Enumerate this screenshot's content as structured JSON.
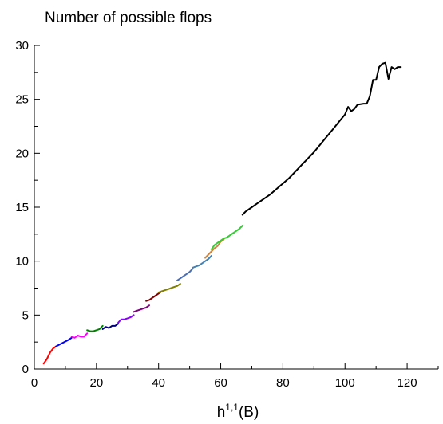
{
  "chart_data": {
    "type": "line",
    "title": "Number of possible flops",
    "xlabel_main": "h",
    "xlabel_sup": "1,1",
    "xlabel_suffix": "(B)",
    "ylabel": "",
    "xlim": [
      0,
      130
    ],
    "ylim": [
      0,
      30
    ],
    "xticks": [
      0,
      20,
      40,
      60,
      80,
      100,
      120
    ],
    "yticks": [
      0,
      5,
      10,
      15,
      20,
      25,
      30
    ],
    "grid": false,
    "series": [
      {
        "color": "#ff0000",
        "x": [
          3,
          4,
          5,
          6,
          7
        ],
        "y": [
          0.5,
          0.9,
          1.5,
          1.9,
          2.1
        ]
      },
      {
        "color": "#0000ff",
        "x": [
          7,
          9,
          11,
          12
        ],
        "y": [
          2.1,
          2.4,
          2.7,
          2.9
        ]
      },
      {
        "color": "#ff00ff",
        "x": [
          12,
          13,
          14,
          15,
          16,
          17
        ],
        "y": [
          3.0,
          2.9,
          3.1,
          3.0,
          3.0,
          3.3
        ]
      },
      {
        "color": "#008000",
        "x": [
          17,
          18,
          19,
          20,
          21,
          22
        ],
        "y": [
          3.6,
          3.5,
          3.5,
          3.6,
          3.7,
          4.0
        ]
      },
      {
        "color": "#000080",
        "x": [
          22,
          23,
          24,
          25,
          26,
          27
        ],
        "y": [
          3.7,
          3.9,
          3.8,
          4.0,
          4.0,
          4.2
        ]
      },
      {
        "color": "#8b00ff",
        "x": [
          27,
          28,
          29,
          30,
          31,
          32
        ],
        "y": [
          4.3,
          4.6,
          4.6,
          4.7,
          4.8,
          5.0
        ]
      },
      {
        "color": "#800080",
        "x": [
          32,
          33,
          34,
          35,
          36,
          37
        ],
        "y": [
          5.3,
          5.4,
          5.5,
          5.6,
          5.7,
          5.9
        ]
      },
      {
        "color": "#800000",
        "x": [
          36,
          37,
          38,
          39,
          40,
          41
        ],
        "y": [
          6.3,
          6.4,
          6.6,
          6.8,
          7.0,
          7.2
        ]
      },
      {
        "color": "#808000",
        "x": [
          40,
          41,
          42,
          43,
          44,
          45,
          46,
          47
        ],
        "y": [
          7.1,
          7.2,
          7.3,
          7.4,
          7.5,
          7.6,
          7.7,
          7.9
        ]
      },
      {
        "color": "#4a6fb5",
        "x": [
          46,
          47,
          48,
          49,
          50,
          51
        ],
        "y": [
          8.2,
          8.4,
          8.6,
          8.8,
          9.0,
          9.3
        ]
      },
      {
        "color": "#4682b4",
        "x": [
          51,
          52,
          53,
          54,
          55,
          56,
          57
        ],
        "y": [
          9.4,
          9.5,
          9.6,
          9.8,
          10.0,
          10.2,
          10.5
        ]
      },
      {
        "color": "#cd853f",
        "x": [
          55,
          56,
          57,
          58,
          59,
          60,
          61
        ],
        "y": [
          10.3,
          10.6,
          10.9,
          11.2,
          11.4,
          11.8,
          12.0
        ]
      },
      {
        "color": "#32cd32",
        "x": [
          57,
          58,
          59,
          60,
          61,
          62,
          63,
          64,
          65,
          66,
          67
        ],
        "y": [
          11.1,
          11.5,
          11.7,
          11.9,
          12.1,
          12.2,
          12.4,
          12.6,
          12.8,
          13.0,
          13.3
        ]
      },
      {
        "color": "#000000",
        "x": [
          67,
          68,
          70,
          72,
          74,
          76,
          78,
          80,
          82,
          84,
          86,
          88,
          90,
          92,
          94,
          96,
          98,
          100,
          101,
          102,
          103,
          104,
          106,
          107,
          108,
          109,
          110,
          111,
          112,
          113,
          114,
          115,
          116,
          117,
          118
        ],
        "y": [
          14.3,
          14.6,
          15.0,
          15.4,
          15.8,
          16.2,
          16.7,
          17.2,
          17.7,
          18.3,
          18.9,
          19.5,
          20.1,
          20.8,
          21.5,
          22.2,
          22.9,
          23.6,
          24.3,
          23.9,
          24.1,
          24.5,
          24.6,
          24.6,
          25.3,
          26.8,
          26.8,
          28.0,
          28.3,
          28.4,
          26.9,
          28.0,
          27.8,
          28.0,
          28.0
        ]
      }
    ]
  }
}
